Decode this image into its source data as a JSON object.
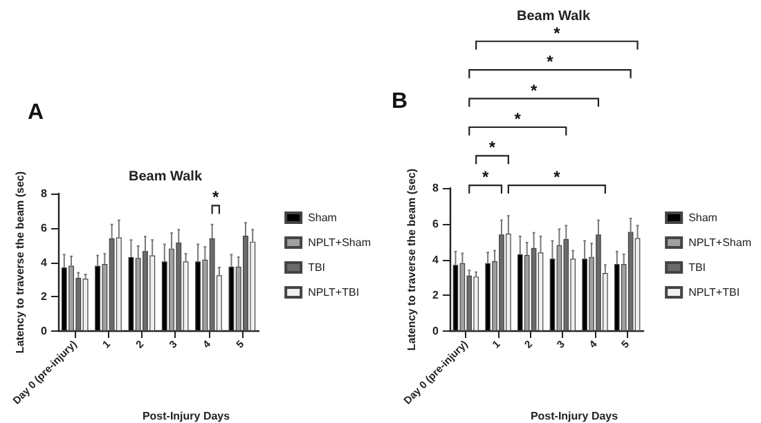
{
  "chart_data": [
    {
      "type": "bar",
      "title": "Beam Walk",
      "xlabel": "Post-Injury Days",
      "ylabel": "Latency to traverse the beam (sec)",
      "annotations": [
        "A",
        "*"
      ],
      "categories": [
        "Day 0 (pre-injury)",
        "1",
        "2",
        "3",
        "4",
        "5"
      ],
      "series": [
        {
          "name": "Sham",
          "color": "#000000",
          "values": [
            3.7,
            3.8,
            4.3,
            4.05,
            4.05,
            3.75
          ],
          "errors": [
            [
              3.7,
              4.45
            ],
            [
              3.8,
              4.4
            ],
            [
              4.3,
              5.3
            ],
            [
              4.05,
              5.05
            ],
            [
              4.05,
              5.05
            ],
            [
              3.75,
              4.45
            ]
          ]
        },
        {
          "name": "NPLT+Sham",
          "color": "#a0a0a0",
          "values": [
            3.8,
            3.9,
            4.25,
            4.8,
            4.15,
            3.75
          ],
          "errors": [
            [
              3.8,
              4.35
            ],
            [
              3.9,
              4.5
            ],
            [
              4.25,
              4.95
            ],
            [
              4.8,
              5.7
            ],
            [
              4.15,
              4.9
            ],
            [
              3.75,
              4.3
            ]
          ]
        },
        {
          "name": "TBI",
          "color": "#6b6b6b",
          "values": [
            3.1,
            5.4,
            4.65,
            5.15,
            5.4,
            5.55
          ],
          "errors": [
            [
              3.1,
              3.4
            ],
            [
              5.4,
              6.2
            ],
            [
              4.65,
              5.5
            ],
            [
              5.15,
              5.9
            ],
            [
              5.4,
              6.2
            ],
            [
              5.55,
              6.3
            ]
          ]
        },
        {
          "name": "NPLT+TBI",
          "color": "#f0f0f0",
          "values": [
            3.05,
            5.45,
            4.4,
            4.05,
            3.25,
            5.2
          ],
          "errors": [
            [
              3.05,
              3.3
            ],
            [
              5.45,
              6.45
            ],
            [
              4.4,
              5.3
            ],
            [
              4.05,
              4.5
            ],
            [
              3.25,
              3.7
            ],
            [
              5.2,
              5.9
            ]
          ]
        }
      ],
      "ylim": [
        0,
        8
      ],
      "yticks": [
        0,
        2,
        4,
        6,
        8
      ],
      "grid": false,
      "legend": "right"
    },
    {
      "type": "bar",
      "title": "Beam Walk",
      "xlabel": "Post-Injury Days",
      "ylabel": "Latency to traverse the beam (sec)",
      "annotations": [
        "B",
        "*",
        "*",
        "*",
        "*",
        "*",
        "*",
        "*"
      ],
      "categories": [
        "Day 0 (pre-injury)",
        "1",
        "2",
        "3",
        "4",
        "5"
      ],
      "series": [
        {
          "name": "Sham",
          "color": "#000000",
          "values": [
            3.7,
            3.8,
            4.3,
            4.05,
            4.05,
            3.75
          ],
          "errors": [
            [
              3.7,
              4.45
            ],
            [
              3.8,
              4.4
            ],
            [
              4.3,
              5.3
            ],
            [
              4.05,
              5.05
            ],
            [
              4.05,
              5.05
            ],
            [
              3.75,
              4.45
            ]
          ]
        },
        {
          "name": "NPLT+Sham",
          "color": "#a0a0a0",
          "values": [
            3.8,
            3.9,
            4.25,
            4.8,
            4.15,
            3.75
          ],
          "errors": [
            [
              3.8,
              4.35
            ],
            [
              3.9,
              4.5
            ],
            [
              4.25,
              4.95
            ],
            [
              4.8,
              5.7
            ],
            [
              4.15,
              4.9
            ],
            [
              3.75,
              4.3
            ]
          ]
        },
        {
          "name": "TBI",
          "color": "#6b6b6b",
          "values": [
            3.1,
            5.4,
            4.65,
            5.15,
            5.4,
            5.55
          ],
          "errors": [
            [
              3.1,
              3.4
            ],
            [
              5.4,
              6.2
            ],
            [
              4.65,
              5.5
            ],
            [
              5.15,
              5.9
            ],
            [
              5.4,
              6.2
            ],
            [
              5.55,
              6.3
            ]
          ]
        },
        {
          "name": "NPLT+TBI",
          "color": "#f0f0f0",
          "values": [
            3.05,
            5.45,
            4.4,
            4.05,
            3.25,
            5.2
          ],
          "errors": [
            [
              3.05,
              3.3
            ],
            [
              5.45,
              6.45
            ],
            [
              4.4,
              5.3
            ],
            [
              4.05,
              4.5
            ],
            [
              3.25,
              3.7
            ],
            [
              5.2,
              5.9
            ]
          ]
        }
      ],
      "ylim": [
        0,
        8
      ],
      "yticks": [
        0,
        2,
        4,
        6,
        8
      ],
      "grid": false,
      "legend": "right"
    }
  ]
}
